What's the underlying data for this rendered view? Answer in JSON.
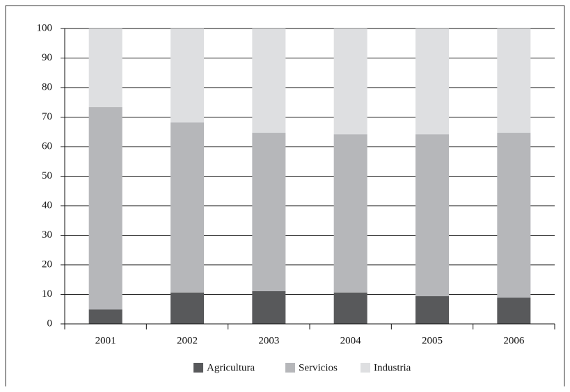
{
  "chart_data": {
    "type": "stacked_bar",
    "categories": [
      "2001",
      "2002",
      "2003",
      "2004",
      "2005",
      "2006"
    ],
    "series": [
      {
        "name": "Agricultura",
        "color": "#58595b",
        "values": [
          4.9,
          10.6,
          11.1,
          10.6,
          9.4,
          8.9
        ]
      },
      {
        "name": "Servicios",
        "color": "#b6b7ba",
        "values": [
          68.5,
          57.6,
          53.6,
          53.6,
          54.8,
          55.8
        ]
      },
      {
        "name": "Industria",
        "color": "#dedfe1",
        "values": [
          26.6,
          31.8,
          35.3,
          35.8,
          35.8,
          35.3
        ]
      }
    ],
    "ylim": [
      0,
      100
    ],
    "yticks": [
      0,
      10,
      20,
      30,
      40,
      50,
      60,
      70,
      80,
      90,
      100
    ],
    "grid": true
  }
}
